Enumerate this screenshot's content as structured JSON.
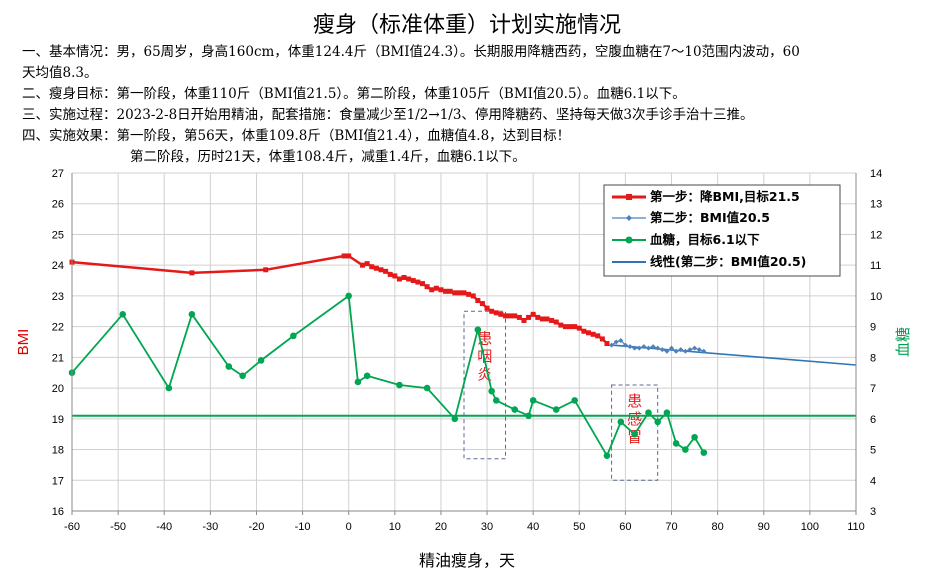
{
  "title": "瘦身（标准体重）计划实施情况",
  "info_lines": [
    "一、基本情况：男，65周岁，身高160cm，体重124.4斤（BMI值24.3）。长期服用降糖西药，空腹血糖在7～10范围内波动，60",
    "天均值8.3。",
    "二、瘦身目标：第一阶段，体重110斤（BMI值21.5）。第二阶段，体重105斤（BMI值20.5）。血糖6.1以下。",
    "三、实施过程：2023-2-8日开始用精油，配套措施：食量减少至1/2→1/3、停用降糖药、坚持每天做3次手诊手治十三推。",
    "四、实施效果：第一阶段，第56天，体重109.8斤（BMI值21.4），血糖值4.8，达到目标！",
    "第二阶段，历时21天，体重108.4斤，减重1.4斤，血糖6.1以下。"
  ],
  "chart_data": {
    "type": "line",
    "xlabel": "精油瘦身，天",
    "ylabel_left": "BMI",
    "ylabel_right": "血糖",
    "xlim": [
      -60,
      110
    ],
    "x_ticks": [
      -60,
      -50,
      -40,
      -30,
      -20,
      -10,
      0,
      10,
      20,
      30,
      40,
      50,
      60,
      70,
      80,
      90,
      100,
      110
    ],
    "ylim_left": [
      16,
      27
    ],
    "y_ticks_left": [
      16,
      17,
      18,
      19,
      20,
      21,
      22,
      23,
      24,
      25,
      26,
      27
    ],
    "ylim_right": [
      3,
      14
    ],
    "y_ticks_right": [
      3,
      4,
      5,
      6,
      7,
      8,
      9,
      10,
      11,
      12,
      13,
      14
    ],
    "grid": true,
    "legend_position": "top-right",
    "legend": [
      "第一步：降BMI,目标21.5",
      "第二步：BMI值20.5",
      "血糖，目标6.1以下",
      "线性(第二步：BMI值20.5)"
    ],
    "colors": {
      "step1": "#e41a1a",
      "step2": "#4f81bd",
      "glucose": "#00a651",
      "trend": "#2e75b6",
      "target": "#00a651",
      "annotation_box": "#5a6a90",
      "annotation_text": "#e02020"
    },
    "series": [
      {
        "key": "step1",
        "name": "第一步：降BMI,目标21.5",
        "axis": "left",
        "points": [
          [
            -60,
            24.1
          ],
          [
            -34,
            23.75
          ],
          [
            -18,
            23.85
          ],
          [
            -1,
            24.3
          ],
          [
            0,
            24.3
          ],
          [
            3,
            24.0
          ],
          [
            4,
            24.05
          ],
          [
            5,
            23.95
          ],
          [
            6,
            23.9
          ],
          [
            7,
            23.85
          ],
          [
            8,
            23.8
          ],
          [
            9,
            23.7
          ],
          [
            10,
            23.65
          ],
          [
            11,
            23.55
          ],
          [
            12,
            23.6
          ],
          [
            13,
            23.55
          ],
          [
            14,
            23.5
          ],
          [
            15,
            23.45
          ],
          [
            16,
            23.4
          ],
          [
            17,
            23.3
          ],
          [
            18,
            23.2
          ],
          [
            19,
            23.25
          ],
          [
            20,
            23.2
          ],
          [
            21,
            23.15
          ],
          [
            22,
            23.15
          ],
          [
            23,
            23.1
          ],
          [
            24,
            23.1
          ],
          [
            25,
            23.1
          ],
          [
            26,
            23.05
          ],
          [
            27,
            23.0
          ],
          [
            28,
            22.85
          ],
          [
            29,
            22.75
          ],
          [
            30,
            22.6
          ],
          [
            31,
            22.5
          ],
          [
            32,
            22.45
          ],
          [
            33,
            22.4
          ],
          [
            34,
            22.35
          ],
          [
            35,
            22.35
          ],
          [
            36,
            22.35
          ],
          [
            37,
            22.3
          ],
          [
            38,
            22.2
          ],
          [
            39,
            22.3
          ],
          [
            40,
            22.4
          ],
          [
            41,
            22.3
          ],
          [
            42,
            22.25
          ],
          [
            43,
            22.25
          ],
          [
            44,
            22.2
          ],
          [
            45,
            22.15
          ],
          [
            46,
            22.05
          ],
          [
            47,
            22.0
          ],
          [
            48,
            22.0
          ],
          [
            49,
            22.0
          ],
          [
            50,
            21.95
          ],
          [
            51,
            21.85
          ],
          [
            52,
            21.8
          ],
          [
            53,
            21.75
          ],
          [
            54,
            21.7
          ],
          [
            55,
            21.6
          ],
          [
            56,
            21.45
          ]
        ]
      },
      {
        "key": "step2",
        "name": "第二步：BMI值20.5",
        "axis": "left",
        "points": [
          [
            57,
            21.4
          ],
          [
            58,
            21.5
          ],
          [
            59,
            21.55
          ],
          [
            60,
            21.4
          ],
          [
            61,
            21.35
          ],
          [
            62,
            21.3
          ],
          [
            63,
            21.3
          ],
          [
            64,
            21.35
          ],
          [
            65,
            21.3
          ],
          [
            66,
            21.35
          ],
          [
            67,
            21.3
          ],
          [
            68,
            21.25
          ],
          [
            69,
            21.2
          ],
          [
            70,
            21.3
          ],
          [
            71,
            21.2
          ],
          [
            72,
            21.25
          ],
          [
            73,
            21.2
          ],
          [
            74,
            21.25
          ],
          [
            75,
            21.3
          ],
          [
            76,
            21.25
          ],
          [
            77,
            21.2
          ]
        ]
      },
      {
        "key": "glucose",
        "name": "血糖，目标6.1以下",
        "axis": "right",
        "points": [
          [
            -60,
            7.5
          ],
          [
            -49,
            9.4
          ],
          [
            -39,
            7.0
          ],
          [
            -34,
            9.4
          ],
          [
            -26,
            7.7
          ],
          [
            -23,
            7.4
          ],
          [
            -19,
            7.9
          ],
          [
            -12,
            8.7
          ],
          [
            0,
            10.0
          ],
          [
            2,
            7.2
          ],
          [
            4,
            7.4
          ],
          [
            11,
            7.1
          ],
          [
            17,
            7.0
          ],
          [
            23,
            6.0
          ],
          [
            28,
            8.9
          ],
          [
            31,
            6.9
          ],
          [
            32,
            6.6
          ],
          [
            36,
            6.3
          ],
          [
            39,
            6.1
          ],
          [
            40,
            6.6
          ],
          [
            45,
            6.3
          ],
          [
            49,
            6.6
          ],
          [
            56,
            4.8
          ],
          [
            59,
            5.9
          ],
          [
            62,
            5.5
          ],
          [
            65,
            6.2
          ],
          [
            67,
            5.9
          ],
          [
            69,
            6.2
          ],
          [
            71,
            5.2
          ],
          [
            73,
            5.0
          ],
          [
            75,
            5.4
          ],
          [
            77,
            4.9
          ]
        ]
      },
      {
        "key": "trend",
        "name": "线性(第二步：BMI值20.5)",
        "axis": "left",
        "points": [
          [
            57,
            21.4
          ],
          [
            110,
            20.75
          ]
        ]
      },
      {
        "key": "target",
        "name": "",
        "axis": "right",
        "points": [
          [
            -60,
            6.1
          ],
          [
            110,
            6.1
          ]
        ]
      }
    ],
    "annotations": [
      {
        "text": [
          "患",
          "咽",
          "炎"
        ],
        "x_range": [
          25,
          34
        ],
        "y_range": [
          4.7,
          9.5
        ]
      },
      {
        "text": [
          "患",
          "感",
          "冒"
        ],
        "x_range": [
          57,
          67
        ],
        "y_range": [
          4.0,
          7.1
        ]
      }
    ]
  }
}
